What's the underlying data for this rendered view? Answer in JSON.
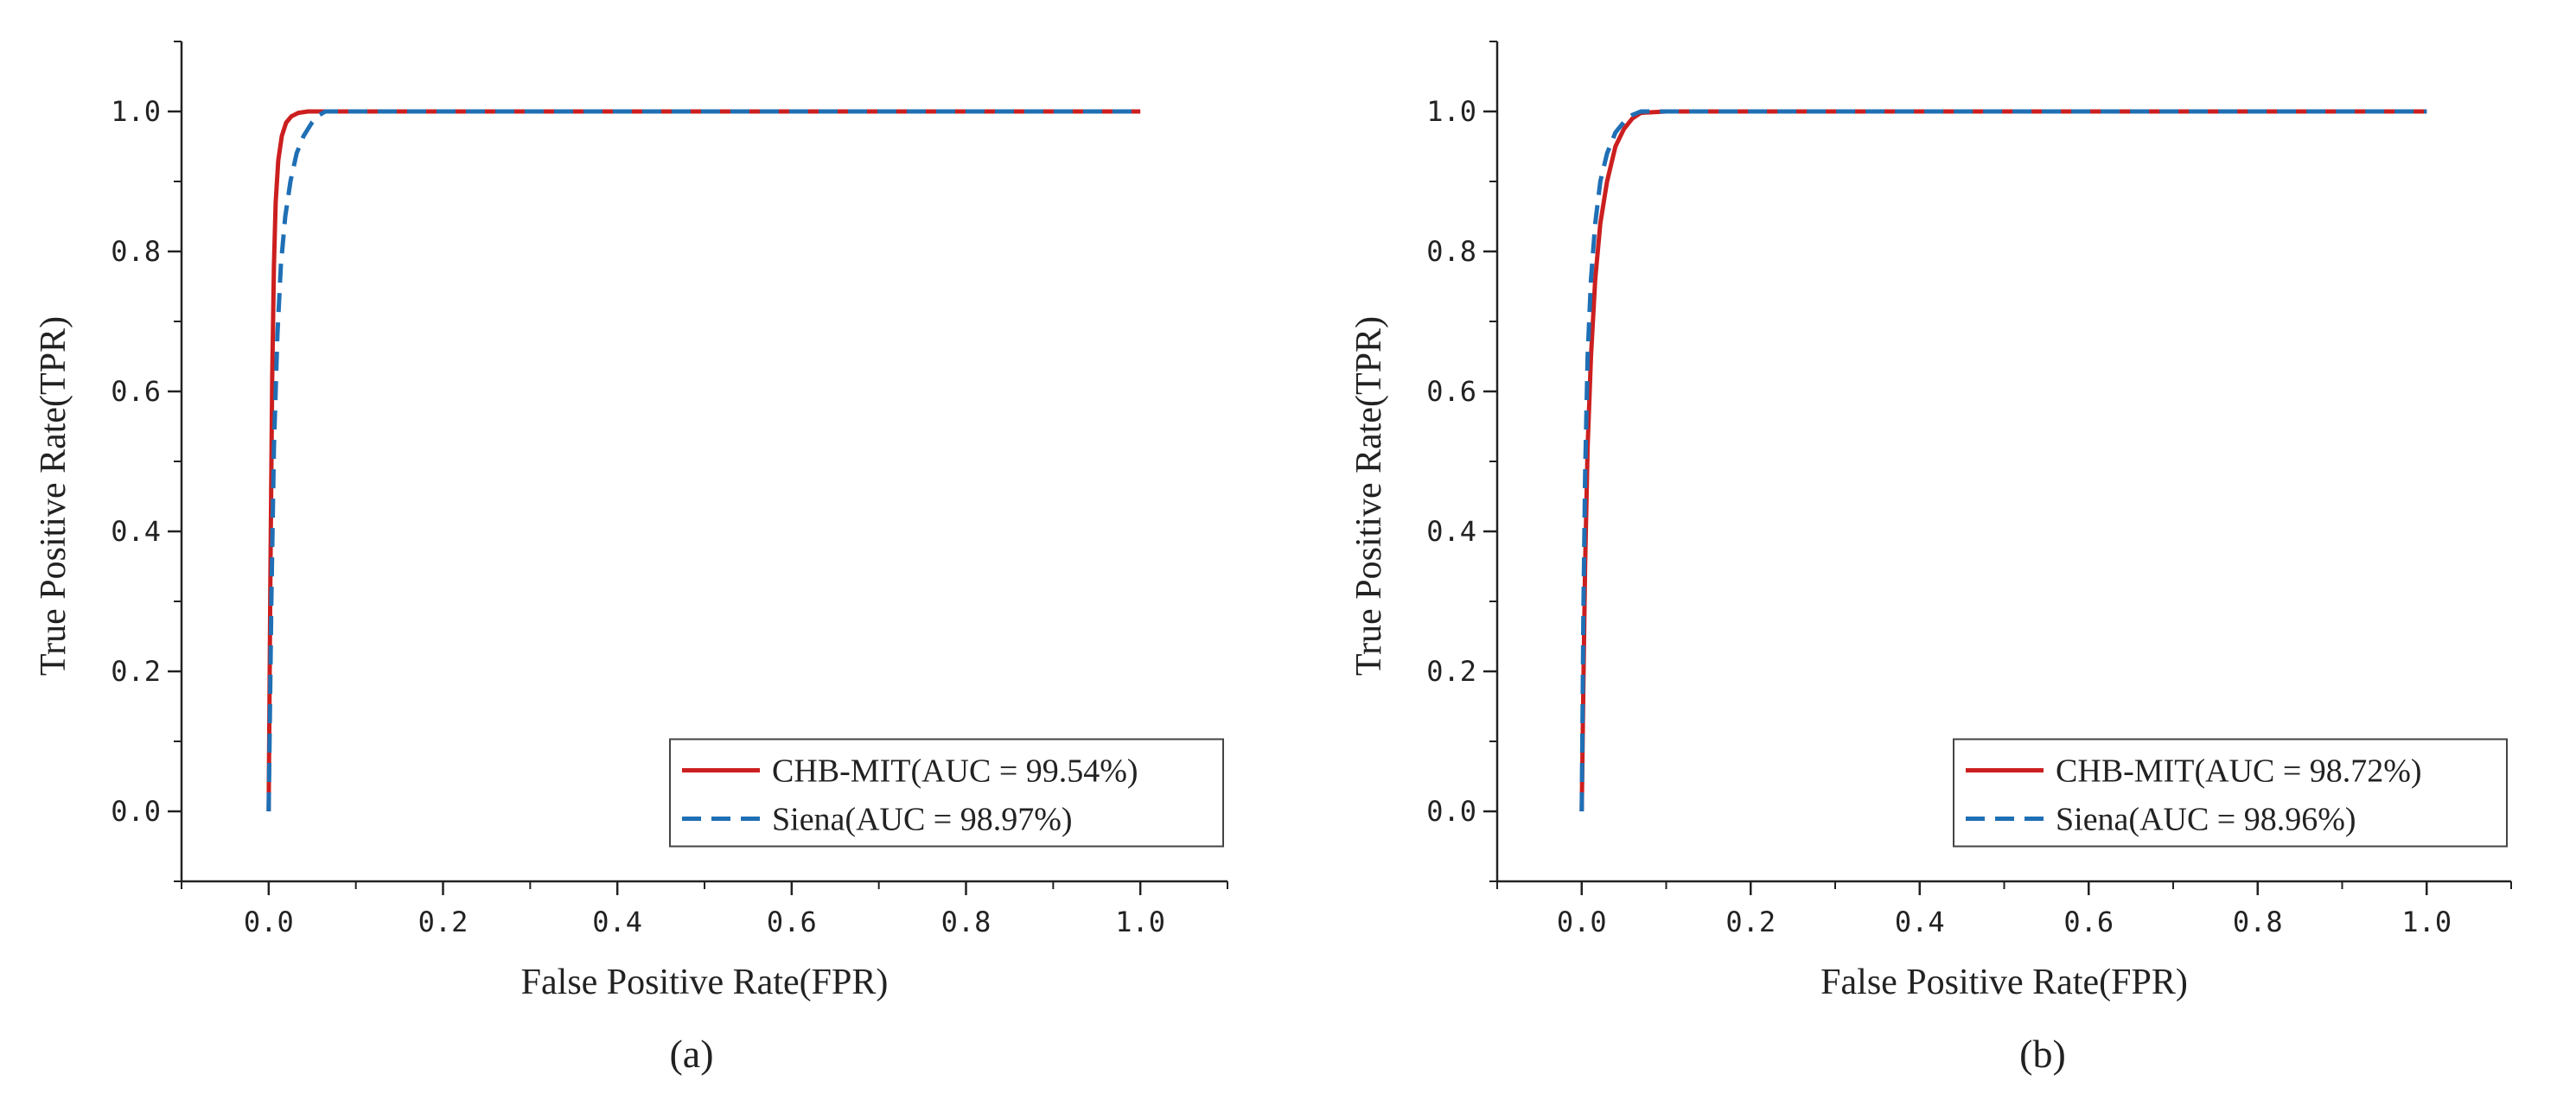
{
  "figure": {
    "panels": [
      "(a)",
      "(b)"
    ]
  },
  "chart_data": [
    {
      "type": "line",
      "panel_label": "(a)",
      "title": "",
      "xlabel": "False Positive Rate(FPR)",
      "ylabel": "True Positive Rate(TPR)",
      "xlim": [
        -0.1,
        1.1
      ],
      "ylim": [
        -0.1,
        1.1
      ],
      "xticks": [
        "0.0",
        "0.2",
        "0.4",
        "0.6",
        "0.8",
        "1.0"
      ],
      "yticks": [
        "0.0",
        "0.2",
        "0.4",
        "0.6",
        "0.8",
        "1.0"
      ],
      "grid": false,
      "legend_position": "bottom-right",
      "series": [
        {
          "name": "CHB-MIT(AUC = 99.54%)",
          "color": "#cc1f1f",
          "dash": "solid",
          "x": [
            0.0,
            0.002,
            0.004,
            0.006,
            0.008,
            0.011,
            0.015,
            0.02,
            0.026,
            0.034,
            0.045,
            0.06,
            0.1,
            0.3,
            0.6,
            1.0
          ],
          "y": [
            0.0,
            0.35,
            0.62,
            0.78,
            0.87,
            0.93,
            0.965,
            0.984,
            0.993,
            0.998,
            1.0,
            1.0,
            1.0,
            1.0,
            1.0,
            1.0
          ]
        },
        {
          "name": "Siena(AUC = 98.97%)",
          "color": "#1f6fb5",
          "dash": "dashed",
          "x": [
            0.0,
            0.003,
            0.006,
            0.01,
            0.014,
            0.019,
            0.025,
            0.032,
            0.04,
            0.05,
            0.058,
            0.065,
            0.1,
            0.3,
            0.6,
            1.0
          ],
          "y": [
            0.0,
            0.3,
            0.52,
            0.68,
            0.78,
            0.85,
            0.9,
            0.94,
            0.965,
            0.985,
            0.995,
            1.0,
            1.0,
            1.0,
            1.0,
            1.0
          ]
        }
      ]
    },
    {
      "type": "line",
      "panel_label": "(b)",
      "title": "",
      "xlabel": "False Positive Rate(FPR)",
      "ylabel": "True Positive Rate(TPR)",
      "xlim": [
        -0.1,
        1.1
      ],
      "ylim": [
        -0.1,
        1.1
      ],
      "xticks": [
        "0.0",
        "0.2",
        "0.4",
        "0.6",
        "0.8",
        "1.0"
      ],
      "yticks": [
        "0.0",
        "0.2",
        "0.4",
        "0.6",
        "0.8",
        "1.0"
      ],
      "grid": false,
      "legend_position": "bottom-right",
      "series": [
        {
          "name": "CHB-MIT(AUC = 98.72%)",
          "color": "#cc1f1f",
          "dash": "solid",
          "x": [
            0.0,
            0.002,
            0.004,
            0.007,
            0.011,
            0.016,
            0.022,
            0.03,
            0.04,
            0.05,
            0.06,
            0.07,
            0.1,
            0.3,
            0.6,
            1.0
          ],
          "y": [
            0.0,
            0.18,
            0.35,
            0.52,
            0.65,
            0.76,
            0.84,
            0.9,
            0.95,
            0.975,
            0.99,
            0.998,
            1.0,
            1.0,
            1.0,
            1.0
          ]
        },
        {
          "name": "Siena(AUC = 98.96%)",
          "color": "#1f6fb5",
          "dash": "dashed",
          "x": [
            0.0,
            0.002,
            0.004,
            0.007,
            0.011,
            0.016,
            0.022,
            0.03,
            0.04,
            0.05,
            0.06,
            0.07,
            0.1,
            0.3,
            0.6,
            1.0
          ],
          "y": [
            0.0,
            0.28,
            0.48,
            0.65,
            0.76,
            0.84,
            0.9,
            0.94,
            0.97,
            0.985,
            0.995,
            1.0,
            1.0,
            1.0,
            1.0,
            1.0
          ]
        }
      ]
    }
  ]
}
